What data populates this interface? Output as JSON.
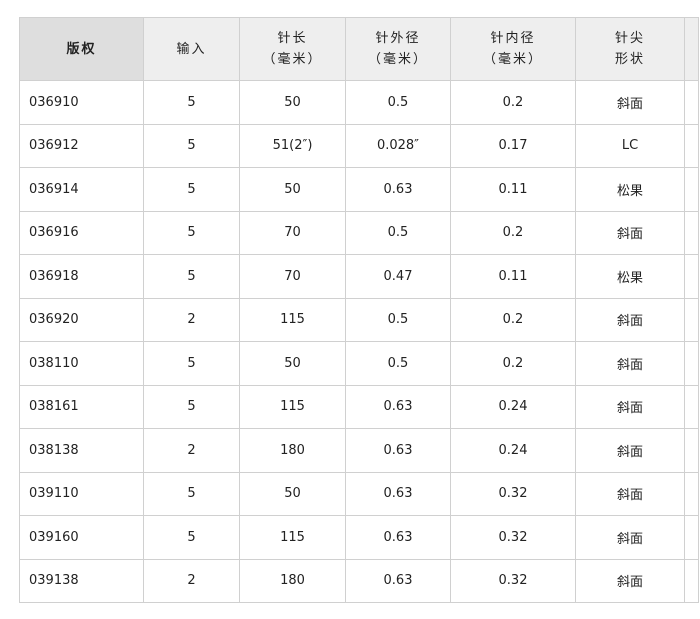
{
  "headers": [
    [
      "版权"
    ],
    [
      "输入"
    ],
    [
      "针长",
      "（毫米）"
    ],
    [
      "针外径",
      "（毫米）"
    ],
    [
      "针内径",
      "（毫米）"
    ],
    [
      "针尖",
      "形状"
    ],
    [
      ""
    ]
  ],
  "rows": [
    [
      "036910",
      "5",
      "50",
      "0.5",
      "0.2",
      "斜面"
    ],
    [
      "036912",
      "5",
      "51(2″)",
      "0.028″",
      "0.17",
      "LC"
    ],
    [
      "036914",
      "5",
      "50",
      "0.63",
      "0.11",
      "松果"
    ],
    [
      "036916",
      "5",
      "70",
      "0.5",
      "0.2",
      "斜面"
    ],
    [
      "036918",
      "5",
      "70",
      "0.47",
      "0.11",
      "松果"
    ],
    [
      "036920",
      "2",
      "115",
      "0.5",
      "0.2",
      "斜面"
    ],
    [
      "038110",
      "5",
      "50",
      "0.5",
      "0.2",
      "斜面"
    ],
    [
      "038161",
      "5",
      "115",
      "0.63",
      "0.24",
      "斜面"
    ],
    [
      "038138",
      "2",
      "180",
      "0.63",
      "0.24",
      "斜面"
    ],
    [
      "039110",
      "5",
      "50",
      "0.63",
      "0.32",
      "斜面"
    ],
    [
      "039160",
      "5",
      "115",
      "0.63",
      "0.32",
      "斜面"
    ],
    [
      "039138",
      "2",
      "180",
      "0.63",
      "0.32",
      "斜面"
    ]
  ]
}
